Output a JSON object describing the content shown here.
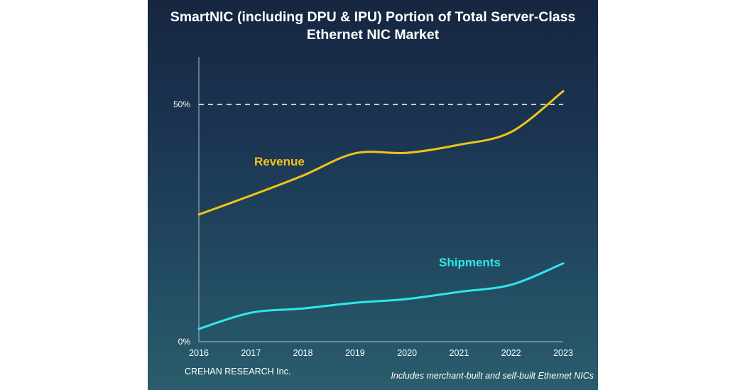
{
  "chart_data": {
    "type": "line",
    "title": "SmartNIC (including DPU & IPU) Portion of Total Server-Class Ethernet NIC Market",
    "x": [
      "2016",
      "2017",
      "2018",
      "2019",
      "2020",
      "2021",
      "2022",
      "2023"
    ],
    "ylim": [
      0,
      50
    ],
    "yticks": [
      "0%",
      "50%"
    ],
    "reference_line": {
      "value": 50,
      "style": "dashed",
      "color": "#ffffff"
    },
    "grid": false,
    "series": [
      {
        "name": "Revenue",
        "color": "#f2c318",
        "values": [
          26.8,
          30.8,
          35.0,
          39.7,
          39.8,
          41.5,
          44.2,
          52.8
        ]
      },
      {
        "name": "Shipments",
        "color": "#2de8ee",
        "values": [
          2.7,
          6.1,
          7.0,
          8.2,
          9.0,
          10.5,
          12.0,
          16.5
        ]
      }
    ]
  },
  "footer": {
    "credit": "CREHAN RESEARCH Inc.",
    "note": "Includes merchant-built and self-built Ethernet NICs"
  }
}
